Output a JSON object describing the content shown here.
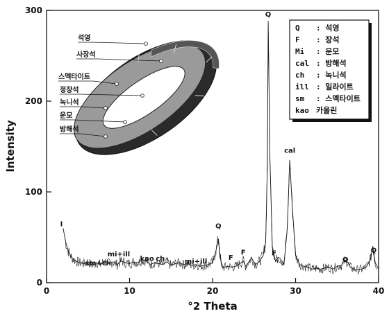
{
  "chart_data": {
    "type": "line",
    "xlabel": "°2 Theta",
    "ylabel": "Intensity",
    "xlim": [
      0,
      40
    ],
    "ylim": [
      0,
      300
    ],
    "x_ticks": [
      0,
      10,
      20,
      30,
      40
    ],
    "y_ticks": [
      0,
      100,
      200,
      300
    ],
    "grid": false,
    "series": [
      {
        "x": [
          2.0,
          2.3,
          2.6,
          3.0,
          3.5,
          4.0,
          4.5,
          5.0,
          5.5,
          6.0,
          6.5,
          7.0,
          7.5,
          8.0,
          8.5,
          9.0,
          9.5,
          10.0,
          10.5,
          11.0,
          11.5,
          12.0,
          12.5,
          13.0,
          13.5,
          14.0,
          14.5,
          15.0,
          15.5,
          16.0,
          16.5,
          17.0,
          17.5,
          18.0,
          18.5,
          19.0,
          19.5,
          20.0,
          20.4,
          20.7,
          20.9,
          21.1,
          21.4,
          21.8,
          22.3,
          22.8,
          23.3,
          23.7,
          24.0,
          24.3,
          24.7,
          25.2,
          25.7,
          26.1,
          26.4,
          26.6,
          26.7,
          26.9,
          27.2,
          27.6,
          27.9,
          28.2,
          28.6,
          29.0,
          29.3,
          29.6,
          30.0,
          30.5,
          31.0,
          31.5,
          32.0,
          32.5,
          33.0,
          33.5,
          34.0,
          34.5,
          35.0,
          35.5,
          36.0,
          36.3,
          36.6,
          37.0,
          37.5,
          38.0,
          38.5,
          39.0,
          39.3,
          39.6,
          40.0
        ],
        "y": [
          60,
          45,
          35,
          28,
          24,
          22,
          21,
          23,
          19,
          22,
          20,
          24,
          21,
          23,
          20,
          24,
          22,
          21,
          23,
          22,
          25,
          24,
          20,
          22,
          21,
          20,
          23,
          19,
          21,
          22,
          20,
          21,
          19,
          20,
          18,
          19,
          20,
          22,
          35,
          48,
          30,
          18,
          17,
          18,
          17,
          18,
          21,
          24,
          18,
          22,
          27,
          20,
          24,
          30,
          45,
          130,
          288,
          140,
          40,
          23,
          28,
          26,
          20,
          60,
          135,
          85,
          30,
          20,
          18,
          17,
          15,
          16,
          15,
          16,
          17,
          15,
          18,
          19,
          25,
          22,
          17,
          15,
          14,
          15,
          17,
          25,
          40,
          22,
          15
        ]
      }
    ],
    "peak_labels": [
      {
        "text": "Q",
        "x": 26.7,
        "y": 290
      },
      {
        "text": "cal",
        "x": 29.3,
        "y": 140
      },
      {
        "text": "Q",
        "x": 20.7,
        "y": 57
      },
      {
        "text": "Q",
        "x": 36.0,
        "y": 20
      },
      {
        "text": "Q",
        "x": 39.4,
        "y": 30
      },
      {
        "text": "F",
        "x": 22.2,
        "y": 22
      },
      {
        "text": "F",
        "x": 23.7,
        "y": 28
      },
      {
        "text": "F",
        "x": 27.4,
        "y": 27
      },
      {
        "text": "sm+ch",
        "x": 6.2,
        "y": 16
      },
      {
        "text": "mi+ill",
        "x": 8.7,
        "y": 26
      },
      {
        "text": "kao",
        "x": 12.1,
        "y": 21
      },
      {
        "text": "ch",
        "x": 13.7,
        "y": 21
      },
      {
        "text": "mi+ill",
        "x": 18.0,
        "y": 18
      },
      {
        "text": "I",
        "x": 1.8,
        "y": 59
      }
    ],
    "legend_placement": "top-right",
    "legend": [
      {
        "abbr": "Q",
        "name": ": 석영"
      },
      {
        "abbr": "F",
        "name": ": 장석"
      },
      {
        "abbr": "Mi",
        "name": ": 운모"
      },
      {
        "abbr": "cal",
        "name": ": 방해석"
      },
      {
        "abbr": "ch",
        "name": ": 녹니석"
      },
      {
        "abbr": "ill",
        "name": ": 일라이트"
      },
      {
        "abbr": "sm",
        "name": ": 스멕타이트"
      },
      {
        "abbr": "kao",
        "name": "카올린"
      }
    ],
    "inset": {
      "labels": [
        "석영",
        "사장석",
        "스멕타이트",
        "정장석",
        "녹니석",
        "운모",
        "방해석"
      ]
    }
  }
}
